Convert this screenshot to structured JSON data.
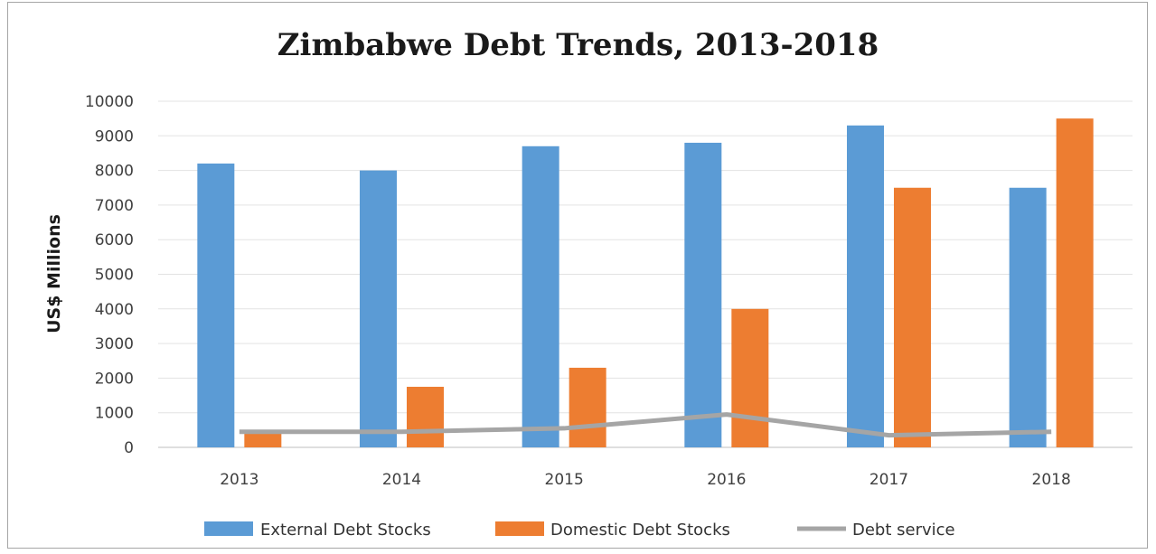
{
  "chart_data": {
    "type": "bar",
    "title": "Zimbabwe Debt Trends, 2013-2018",
    "xlabel": "",
    "ylabel": "US$ Millions",
    "ylim": [
      0,
      10000
    ],
    "yticks": [
      0,
      1000,
      2000,
      3000,
      4000,
      5000,
      6000,
      7000,
      8000,
      9000,
      10000
    ],
    "categories": [
      "2013",
      "2014",
      "2015",
      "2016",
      "2017",
      "2018"
    ],
    "grid": true,
    "legend_position": "bottom",
    "series": [
      {
        "name": "External Debt Stocks",
        "kind": "bar",
        "color": "#5b9bd5",
        "values": [
          8200,
          8000,
          8700,
          8800,
          9300,
          7500
        ]
      },
      {
        "name": "Domestic Debt Stocks",
        "kind": "bar",
        "color": "#ed7d31",
        "values": [
          500,
          1750,
          2300,
          4000,
          7500,
          9500
        ]
      },
      {
        "name": "Debt service",
        "kind": "line",
        "color": "#a5a5a5",
        "values": [
          450,
          450,
          550,
          950,
          350,
          450
        ]
      }
    ]
  }
}
